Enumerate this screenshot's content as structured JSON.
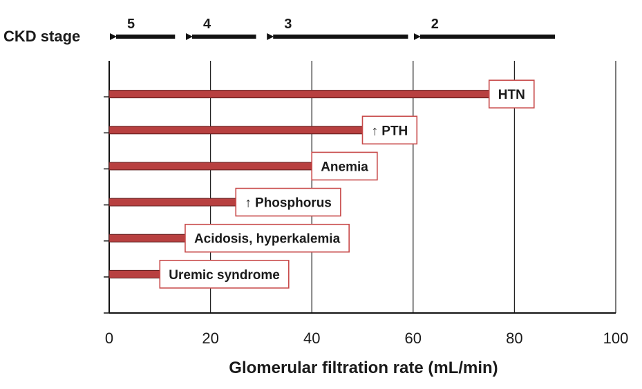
{
  "chart_data": {
    "type": "bar",
    "orientation": "horizontal",
    "xlabel": "Glomerular filtration rate (mL/min)",
    "xlim": [
      0,
      100
    ],
    "xticks": [
      0,
      20,
      40,
      60,
      80,
      100
    ],
    "grid": "vertical lines at 20, 40, 60, 80, 100",
    "categories": [
      "HTN",
      "↑ PTH",
      "Anemia",
      "↑ Phosphorus",
      "Acidosis, hyperkalemia",
      "Uremic syndrome"
    ],
    "values": [
      75,
      50,
      40,
      25,
      15,
      10
    ],
    "bar_color": "#b84040",
    "label_border_color": "#c84a4a",
    "stages": {
      "title": "CKD stage",
      "items": [
        {
          "label": "5",
          "from": 13,
          "to": 0
        },
        {
          "label": "4",
          "from": 29,
          "to": 15
        },
        {
          "label": "3",
          "from": 59,
          "to": 31
        },
        {
          "label": "2",
          "from": 88,
          "to": 60
        }
      ]
    }
  }
}
